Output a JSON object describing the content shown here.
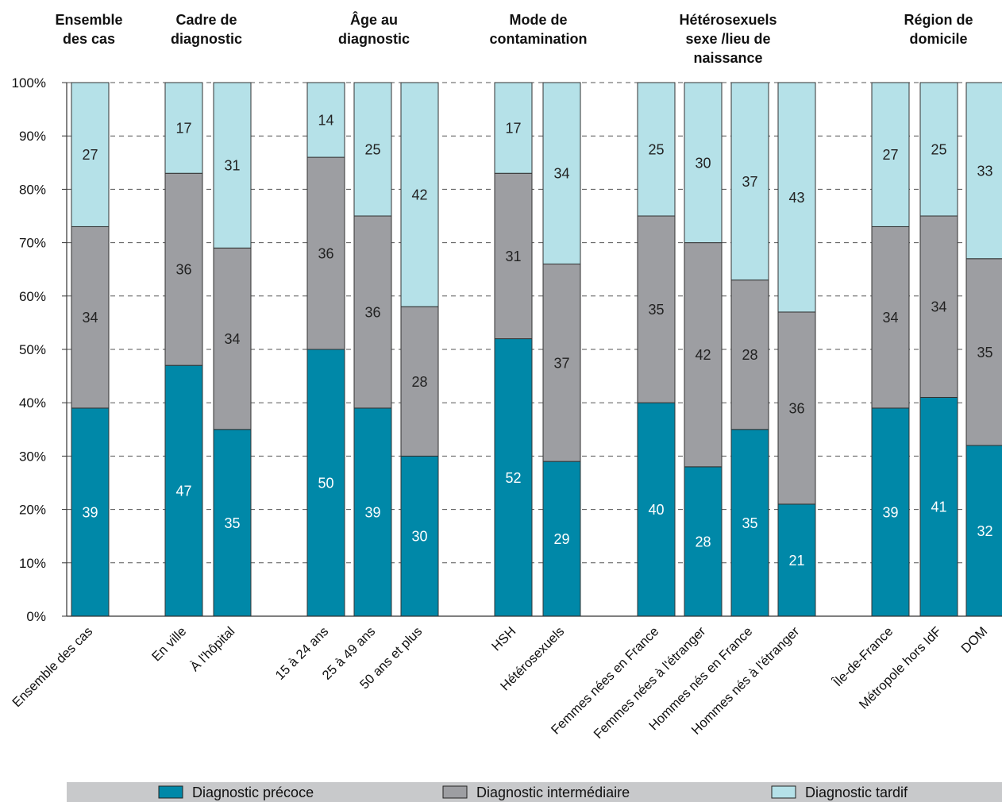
{
  "chart_data": {
    "type": "bar",
    "stacked": true,
    "percent": true,
    "ylim": [
      0,
      100
    ],
    "yticks": [
      "0%",
      "10%",
      "20%",
      "30%",
      "40%",
      "50%",
      "60%",
      "70%",
      "80%",
      "90%",
      "100%"
    ],
    "grid": "dashed horizontal",
    "legend_position": "bottom",
    "groups": [
      {
        "title": [
          "Ensemble",
          "des cas"
        ],
        "categories": [
          "Ensemble des cas"
        ]
      },
      {
        "title": [
          "Cadre de",
          "diagnostic"
        ],
        "categories": [
          "En ville",
          "À l'hôpital"
        ]
      },
      {
        "title": [
          "Âge au",
          "diagnostic"
        ],
        "categories": [
          "15 à 24 ans",
          "25 à 49 ans",
          "50 ans et plus"
        ]
      },
      {
        "title": [
          "Mode de",
          "contamination"
        ],
        "categories": [
          "HSH",
          "Hétérosexuels"
        ]
      },
      {
        "title": [
          "Hétérosexuels",
          "sexe /lieu de",
          "naissance"
        ],
        "categories": [
          "Femmes nées en France",
          "Femmes nées à l'étranger",
          "Hommes nés en France",
          "Hommes nés à l'étranger"
        ]
      },
      {
        "title": [
          "Région de",
          "domicile"
        ],
        "categories": [
          "Île-de-France",
          "Métropole hors IdF",
          "DOM"
        ]
      }
    ],
    "series": [
      {
        "name": "Diagnostic précoce",
        "color": "#0088a8",
        "label_color": "#ffffff",
        "values": [
          39,
          47,
          35,
          50,
          39,
          30,
          52,
          29,
          40,
          28,
          35,
          21,
          39,
          41,
          32
        ]
      },
      {
        "name": "Diagnostic intermédiaire",
        "color": "#9d9ea2",
        "label_color": "#222222",
        "values": [
          34,
          36,
          34,
          36,
          36,
          28,
          31,
          37,
          35,
          42,
          28,
          36,
          34,
          34,
          35
        ]
      },
      {
        "name": "Diagnostic tardif",
        "color": "#b5e1e8",
        "label_color": "#222222",
        "values": [
          27,
          17,
          31,
          14,
          25,
          42,
          17,
          34,
          25,
          30,
          37,
          43,
          27,
          25,
          33
        ]
      }
    ]
  }
}
